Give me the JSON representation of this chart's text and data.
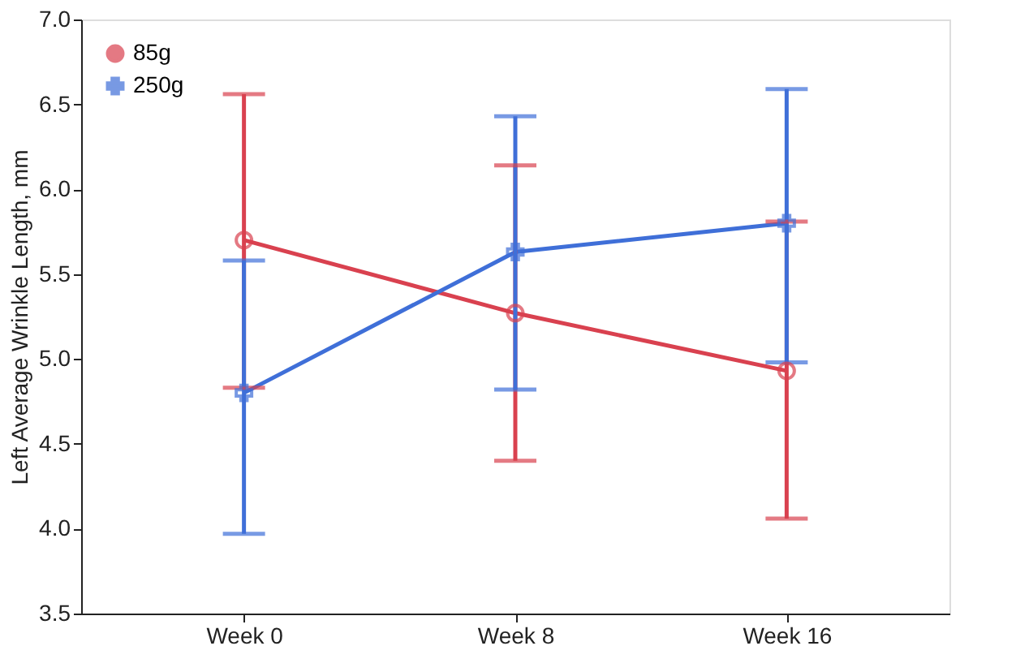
{
  "chart_data": {
    "type": "line",
    "ylabel": "Left Average Wrinkle Length, mm",
    "categories": [
      "Week 0",
      "Week 8",
      "Week 16"
    ],
    "series": [
      {
        "name": "85g",
        "color": "#d9414f",
        "marker": "circle",
        "values": [
          5.7,
          5.27,
          4.93
        ],
        "errors": [
          [
            4.83,
            6.56
          ],
          [
            4.4,
            6.14
          ],
          [
            4.06,
            5.81
          ]
        ]
      },
      {
        "name": "250g",
        "color": "#3f6fd8",
        "marker": "cross",
        "values": [
          4.8,
          5.63,
          5.8
        ],
        "errors": [
          [
            3.97,
            5.58
          ],
          [
            4.82,
            6.43
          ],
          [
            4.98,
            6.59
          ]
        ]
      }
    ],
    "ylim": [
      3.5,
      7.0
    ],
    "yticks": [
      3.5,
      {
        "value": 4,
        "label": "4.0"
      },
      4.5,
      {
        "value": 5,
        "label": "5.0"
      },
      5.5,
      {
        "value": 6,
        "label": "6.0"
      },
      6.5,
      {
        "value": 7,
        "label": "7.0"
      }
    ],
    "grid": false,
    "legend": "top left"
  }
}
